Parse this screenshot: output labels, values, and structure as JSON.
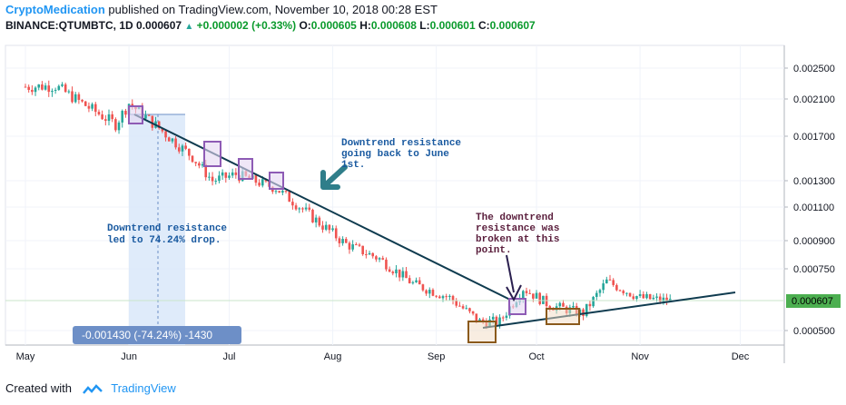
{
  "header": {
    "author": "CryptoMedication",
    "published_text": "published on TradingView.com, November 10, 2018 00:28 EST",
    "symbol": "BINANCE:QTUMBTC, 1D",
    "last": "0.000607",
    "change": "+0.000002 (+0.33%)",
    "open_label": "O:",
    "open": "0.000605",
    "high_label": "H:",
    "high": "0.000608",
    "low_label": "L:",
    "low": "0.000601",
    "close_label": "C:",
    "close": "0.000607"
  },
  "footer": {
    "created_with": "Created with",
    "brand": "TradingView"
  },
  "chart_data": {
    "type": "candlestick",
    "x_ticks": [
      "May",
      "Jun",
      "Jul",
      "Aug",
      "Sep",
      "Oct",
      "Nov",
      "Dec"
    ],
    "y_ticks": [
      "0.002500",
      "0.002100",
      "0.001700",
      "0.001300",
      "0.001100",
      "0.000900",
      "0.000750",
      "0.000500"
    ],
    "y_scale": "log",
    "ylim": [
      0.00043,
      0.0029
    ],
    "current_price_label": "0.000607",
    "colors": {
      "up": "#26a69a",
      "down": "#ef5350",
      "trendline": "#0f3b4f",
      "annotation_blue": "#1a5aa0",
      "annotation_dark": "#5a1e3c",
      "measure_fill": "#dbe9f9",
      "measure_label_bg": "#6d8fc7",
      "box_purple": "#8e5bb5",
      "box_brown": "#8b5a1c",
      "price_tag": "#4caf50"
    },
    "series": [
      {
        "date": "2018-05-01",
        "close": 0.00225
      },
      {
        "date": "2018-05-10",
        "close": 0.00226
      },
      {
        "date": "2018-05-20",
        "close": 0.002
      },
      {
        "date": "2018-05-28",
        "close": 0.00182
      },
      {
        "date": "2018-06-01",
        "close": 0.00205
      },
      {
        "date": "2018-06-10",
        "close": 0.00178
      },
      {
        "date": "2018-06-20",
        "close": 0.0015
      },
      {
        "date": "2018-06-26",
        "close": 0.0013
      },
      {
        "date": "2018-07-03",
        "close": 0.00135
      },
      {
        "date": "2018-07-15",
        "close": 0.00124
      },
      {
        "date": "2018-07-25",
        "close": 0.00105
      },
      {
        "date": "2018-08-05",
        "close": 0.00088
      },
      {
        "date": "2018-08-15",
        "close": 0.0008
      },
      {
        "date": "2018-08-25",
        "close": 0.00068
      },
      {
        "date": "2018-09-05",
        "close": 0.00062
      },
      {
        "date": "2018-09-14",
        "close": 0.00053
      },
      {
        "date": "2018-09-20",
        "close": 0.00053
      },
      {
        "date": "2018-09-27",
        "close": 0.00066
      },
      {
        "date": "2018-10-05",
        "close": 0.00059
      },
      {
        "date": "2018-10-15",
        "close": 0.00056
      },
      {
        "date": "2018-10-22",
        "close": 0.00069
      },
      {
        "date": "2018-11-01",
        "close": 0.00062
      },
      {
        "date": "2018-11-10",
        "close": 0.000607
      }
    ],
    "annotations": {
      "left_note": "Downtrend resistance\nled to 74.24% drop.",
      "right_top_note": "Downtrend resistance\ngoing back to June\n1st.",
      "break_note": "The downtrend\nresistance was\nbroken at this\npoint.",
      "measure_label": "-0.001430 (-74.24%) -1430"
    }
  }
}
